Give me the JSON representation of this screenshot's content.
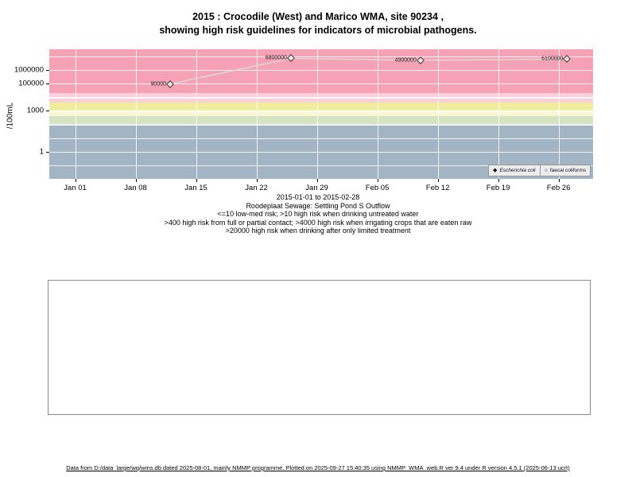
{
  "title": {
    "line1": "2015 : Crocodile (West) and Marico WMA, site 90234 ,",
    "line2": "showing high risk guidelines for indicators of microbial pathogens."
  },
  "chart_data": {
    "type": "line",
    "title": "2015 : Crocodile (West) and Marico WMA, site 90234, showing high risk guidelines for indicators of microbial pathogens",
    "xlabel": "2015-01-01 to 2015-02-28",
    "ylabel": "/100mL",
    "y_scale": "log",
    "grid": "white gridlines over colored risk bands",
    "legend_position": "bottom-right",
    "y_range": {
      "min": 0.01,
      "max": 31600000
    },
    "x_range": {
      "start": "2014-12-29",
      "end": "2015-03-02"
    },
    "y_ticks": [
      {
        "value": 1000000,
        "label": "1000000"
      },
      {
        "value": 100000,
        "label": "100000"
      },
      {
        "value": 1000,
        "label": "1000"
      },
      {
        "value": 1,
        "label": "1"
      }
    ],
    "x_ticks": [
      {
        "date": "2015-01-01",
        "label": "Jan 01"
      },
      {
        "date": "2015-01-08",
        "label": "Jan 08"
      },
      {
        "date": "2015-01-15",
        "label": "Jan 15"
      },
      {
        "date": "2015-01-22",
        "label": "Jan 22"
      },
      {
        "date": "2015-01-29",
        "label": "Jan 29"
      },
      {
        "date": "2015-02-05",
        "label": "Feb 05"
      },
      {
        "date": "2015-02-12",
        "label": "Feb 12"
      },
      {
        "date": "2015-02-19",
        "label": "Feb 19"
      },
      {
        "date": "2015-02-26",
        "label": "Feb 26"
      }
    ],
    "series": [
      {
        "name": "Escherichia coli",
        "marker": "diamond",
        "points": [
          {
            "date": "2015-01-12",
            "value": 90000,
            "label": "90000"
          },
          {
            "date": "2015-01-26",
            "value": 6800000,
            "label": "6800000"
          },
          {
            "date": "2015-02-10",
            "value": 4900000,
            "label": "4900000"
          },
          {
            "date": "2015-02-27",
            "value": 6100000,
            "label": "6100000"
          }
        ]
      }
    ],
    "line_color": "#d9d9d9",
    "bands": [
      {
        "min": 20000,
        "max": 31600000,
        "color": "#f6a2b4"
      },
      {
        "min": 4000,
        "max": 20000,
        "color": "#fad0da"
      },
      {
        "min": 1000,
        "max": 4000,
        "color": "#f0ee9c"
      },
      {
        "min": 400,
        "max": 1000,
        "color": "#faf7d4"
      },
      {
        "min": 100,
        "max": 400,
        "color": "#d4e4c2"
      },
      {
        "min": 0.01,
        "max": 100,
        "color": "#a3b4c4"
      }
    ],
    "legend": [
      {
        "marker": "diamond",
        "label": "Escherichia coli",
        "italic": true
      },
      {
        "marker": "circle",
        "label": "faecal coliforms",
        "italic": false
      }
    ]
  },
  "captions": {
    "date_range": "2015-01-01 to 2015-02-28",
    "site": "Roodeplaat Sewage: Settling Pond S Outflow",
    "guidelines": [
      "<=10 low-med risk; >10 high risk when drinking untreated water",
      ">400 high risk from full or partial contact; >4000 high risk when irrigating crops that are eaten raw",
      ">20000 high risk when drinking after only limited treatment"
    ]
  },
  "footer": {
    "text": "Data from D:/data_large/wq/wms.db dated 2025-08-01, mainly NMMP programme. Plotted on 2025-09-27 15:40:35 using NMMP_WMA_web.R ver 9.4 under R version 4.5.1 (2025-06-13 ucrt)"
  }
}
